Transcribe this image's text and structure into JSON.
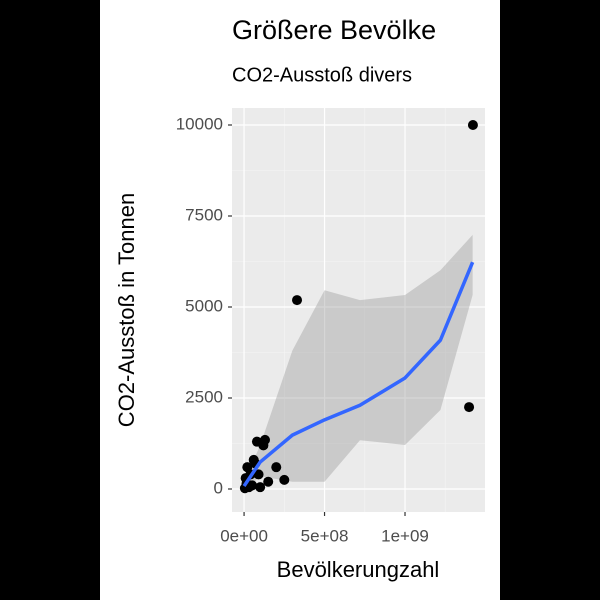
{
  "chart_data": {
    "type": "scatter",
    "title": "Größere Bevölke",
    "subtitle": "CO2-Ausstoß divers",
    "x_label": "Bevölkerungzahl",
    "y_label": "CO2-Ausstoß in Tonnen",
    "xlim": [
      -75000000,
      1497000000
    ],
    "ylim": [
      -632,
      10467
    ],
    "xticks": [
      {
        "value": 0,
        "label": "0e+00"
      },
      {
        "value": 500000000,
        "label": "5e+08"
      },
      {
        "value": 1000000000,
        "label": "1e+09"
      }
    ],
    "yticks": [
      0,
      2500,
      5000,
      7500,
      10000
    ],
    "xminor": [
      250000000,
      750000000,
      1250000000
    ],
    "yminor": [
      1250,
      3750,
      6250,
      8750
    ],
    "grid": true,
    "point_color": "#000000",
    "x": [
      1422000000,
      329000000,
      1398000000,
      20000000,
      10000000,
      50000000,
      80000000,
      130000000,
      90000000,
      200000000,
      150000000,
      60000000,
      30000000,
      100000000,
      250000000,
      5000000,
      40000000,
      120000000,
      70000000,
      15000000
    ],
    "y": [
      10000,
      5190,
      2250,
      600,
      300,
      100,
      1300,
      1350,
      400,
      600,
      200,
      800,
      50,
      50,
      250,
      20,
      400,
      1200,
      700,
      150
    ],
    "fit": {
      "line_color": "#3366ff",
      "band_color": "#999999",
      "x": [
        0,
        100000000,
        300000000,
        500000000,
        720000000,
        1000000000,
        1220000000,
        1420000000
      ],
      "y": [
        80,
        740,
        1480,
        1900,
        2300,
        3050,
        4090,
        6230
      ],
      "lower": [
        -50,
        350,
        200,
        200,
        1340,
        1210,
        2170,
        5330
      ],
      "upper": [
        200,
        1200,
        3800,
        5460,
        5190,
        5330,
        6010,
        6980
      ]
    }
  }
}
